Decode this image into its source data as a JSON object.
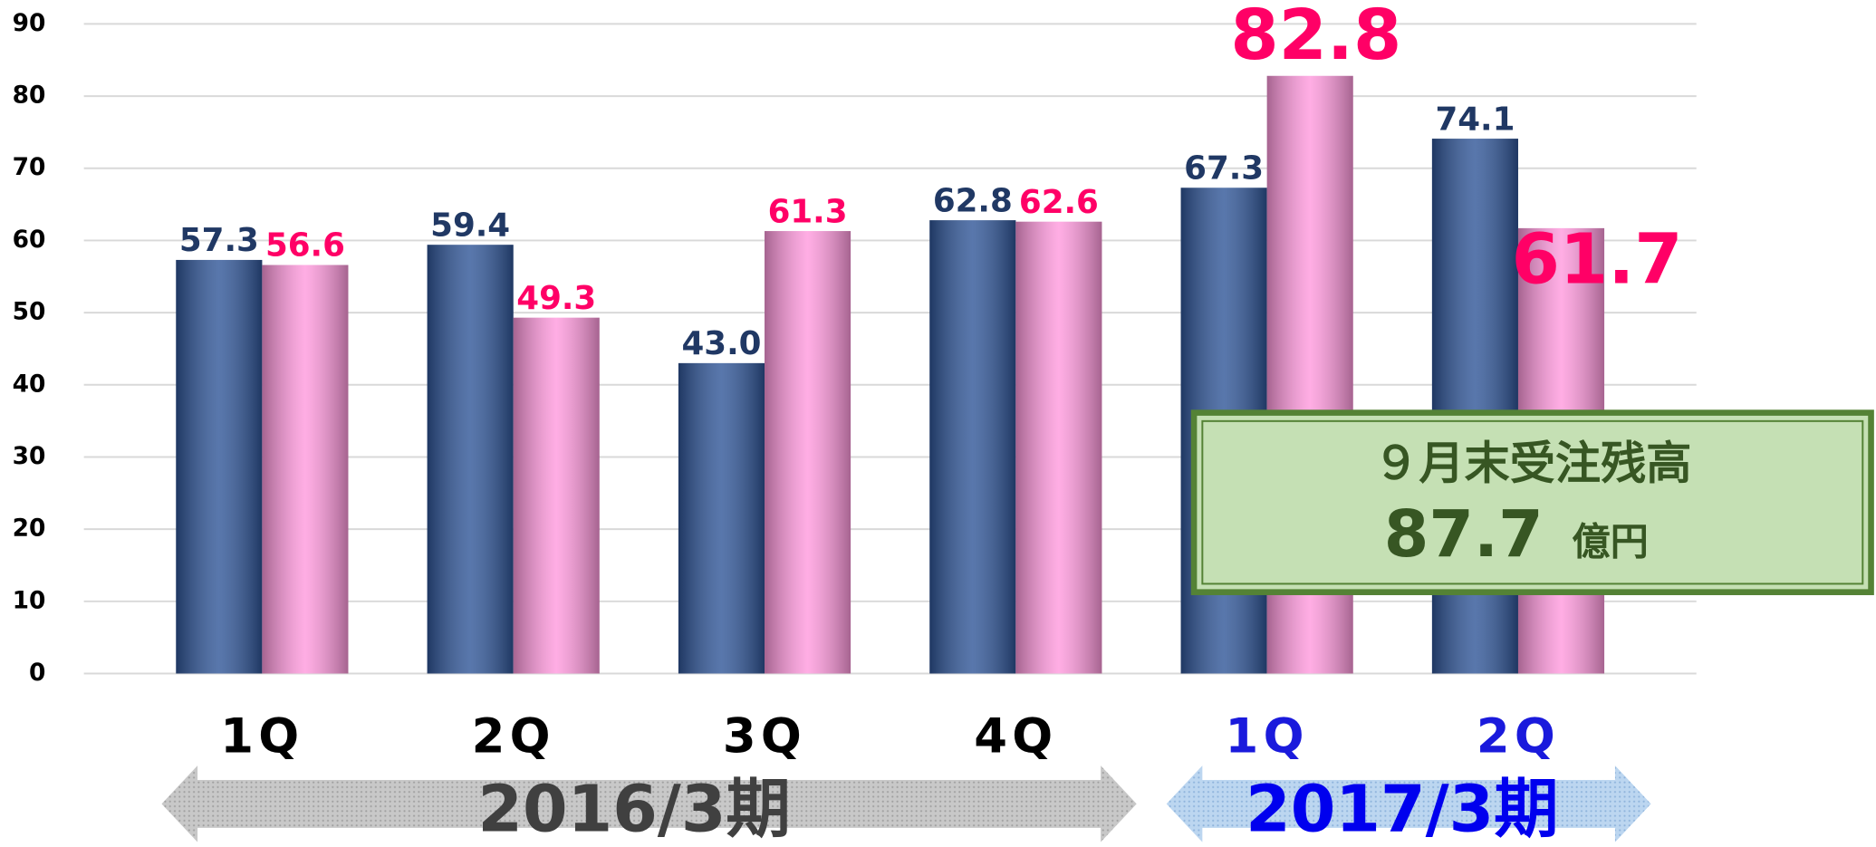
{
  "chart_data": {
    "type": "bar",
    "categories": [
      "1Q",
      "2Q",
      "3Q",
      "4Q",
      "1Q",
      "2Q"
    ],
    "category_colors": [
      "#000000",
      "#000000",
      "#000000",
      "#000000",
      "#1a1adc",
      "#1a1adc"
    ],
    "series": [
      {
        "color": "#2f5597",
        "label_color": "#203864",
        "values": [
          57.3,
          59.4,
          43.0,
          62.8,
          67.3,
          74.1
        ],
        "value_labels": [
          "57.3",
          "59.4",
          "43.0",
          "62.8",
          "67.3",
          "74.1"
        ]
      },
      {
        "color": "#ff99dd",
        "label_color": "#ff0066",
        "values": [
          56.6,
          49.3,
          61.3,
          62.6,
          82.8,
          61.7
        ],
        "value_labels": [
          "56.6",
          "49.3",
          "61.3",
          "62.6",
          "82.8",
          "61.7"
        ]
      }
    ],
    "ylim": [
      0,
      90
    ],
    "yticks": [
      0,
      10,
      20,
      30,
      40,
      50,
      60,
      70,
      80,
      90
    ],
    "grid": true,
    "periods": [
      {
        "label": "2016/3期",
        "color": "#404040"
      },
      {
        "label": "2017/3期",
        "color": "#0000ee"
      }
    ],
    "annotation": {
      "title": "９月末受注残高",
      "value": "87.7",
      "unit": "億円"
    }
  }
}
